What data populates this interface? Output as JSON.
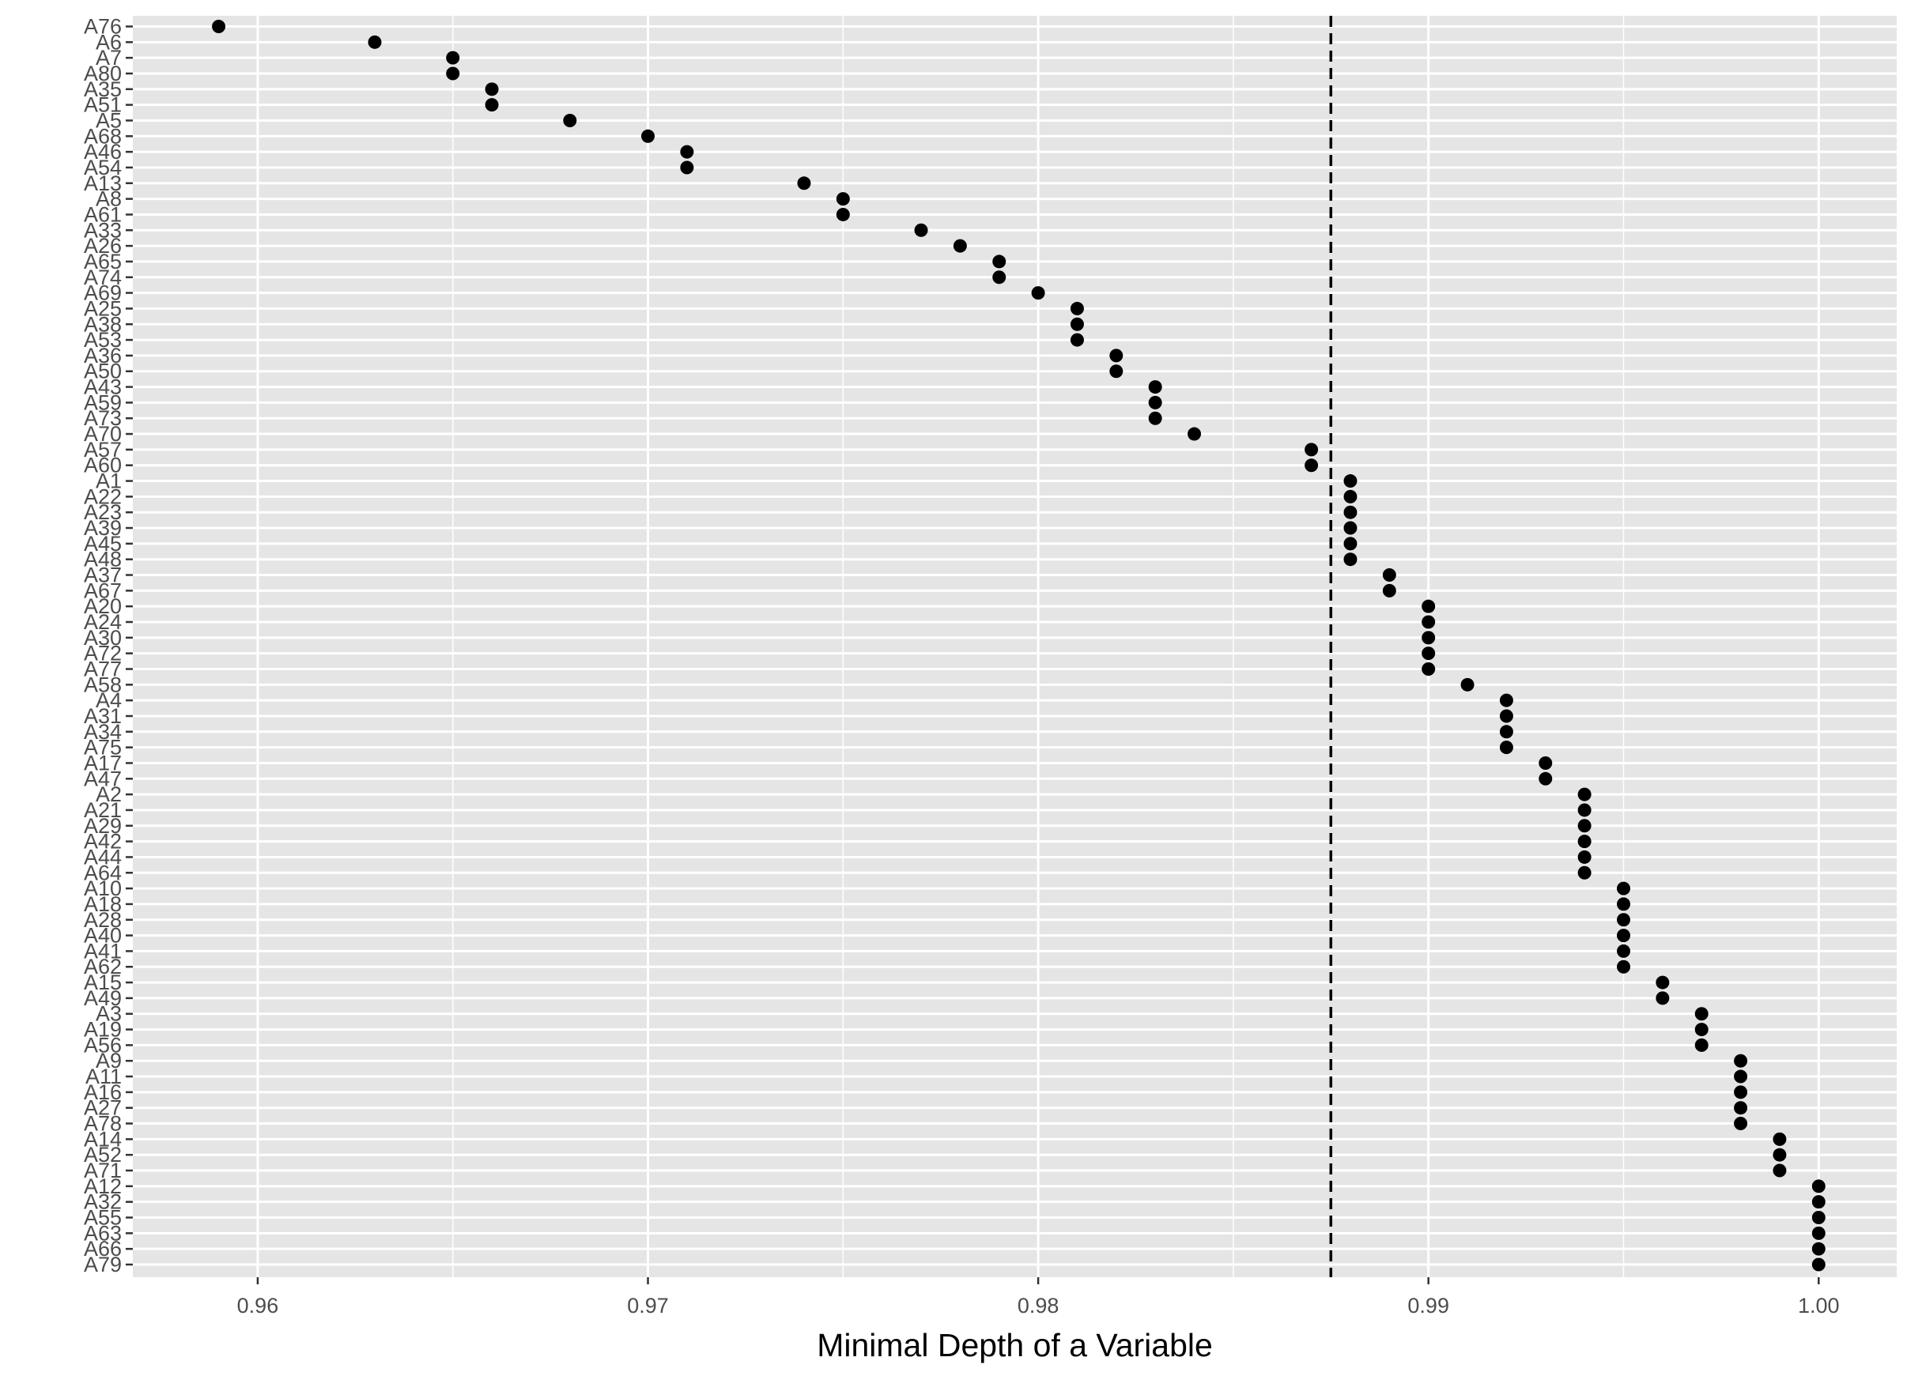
{
  "chart_data": {
    "type": "scatter",
    "title": "",
    "xlabel": "Minimal Depth of a Variable",
    "ylabel": "",
    "xlim": [
      0.9568,
      1.002
    ],
    "x_ticks": [
      0.96,
      0.97,
      0.98,
      0.99,
      1.0
    ],
    "x_tick_labels": [
      "0.96",
      "0.97",
      "0.98",
      "0.99",
      "1.00"
    ],
    "grid": true,
    "legend": "none",
    "reference_line": {
      "x": 0.9875,
      "style": "dashed"
    },
    "colors": {
      "panel": "#e5e5e5",
      "grid": "#ffffff",
      "point": "#000000",
      "tick_text": "#4d4d4d",
      "title_text": "#000000"
    },
    "categories": [
      "A76",
      "A6",
      "A7",
      "A80",
      "A35",
      "A51",
      "A5",
      "A68",
      "A46",
      "A54",
      "A13",
      "A8",
      "A61",
      "A33",
      "A26",
      "A65",
      "A74",
      "A69",
      "A25",
      "A38",
      "A53",
      "A36",
      "A50",
      "A43",
      "A59",
      "A73",
      "A70",
      "A57",
      "A60",
      "A1",
      "A22",
      "A23",
      "A39",
      "A45",
      "A48",
      "A37",
      "A67",
      "A20",
      "A24",
      "A30",
      "A72",
      "A77",
      "A58",
      "A4",
      "A31",
      "A34",
      "A75",
      "A17",
      "A47",
      "A2",
      "A21",
      "A29",
      "A42",
      "A44",
      "A64",
      "A10",
      "A18",
      "A28",
      "A40",
      "A41",
      "A62",
      "A15",
      "A49",
      "A3",
      "A19",
      "A56",
      "A9",
      "A11",
      "A16",
      "A27",
      "A78",
      "A14",
      "A52",
      "A71",
      "A12",
      "A32",
      "A55",
      "A63",
      "A66",
      "A79"
    ],
    "values": [
      0.959,
      0.963,
      0.965,
      0.965,
      0.966,
      0.966,
      0.968,
      0.97,
      0.971,
      0.971,
      0.974,
      0.975,
      0.975,
      0.977,
      0.978,
      0.979,
      0.979,
      0.98,
      0.981,
      0.981,
      0.981,
      0.982,
      0.982,
      0.983,
      0.983,
      0.983,
      0.984,
      0.987,
      0.987,
      0.988,
      0.988,
      0.988,
      0.988,
      0.988,
      0.988,
      0.989,
      0.989,
      0.99,
      0.99,
      0.99,
      0.99,
      0.99,
      0.991,
      0.992,
      0.992,
      0.992,
      0.992,
      0.993,
      0.993,
      0.994,
      0.994,
      0.994,
      0.994,
      0.994,
      0.994,
      0.995,
      0.995,
      0.995,
      0.995,
      0.995,
      0.995,
      0.996,
      0.996,
      0.997,
      0.997,
      0.997,
      0.998,
      0.998,
      0.998,
      0.998,
      0.998,
      0.999,
      0.999,
      0.999,
      1.0,
      1.0,
      1.0,
      1.0,
      1.0,
      1.0
    ]
  }
}
